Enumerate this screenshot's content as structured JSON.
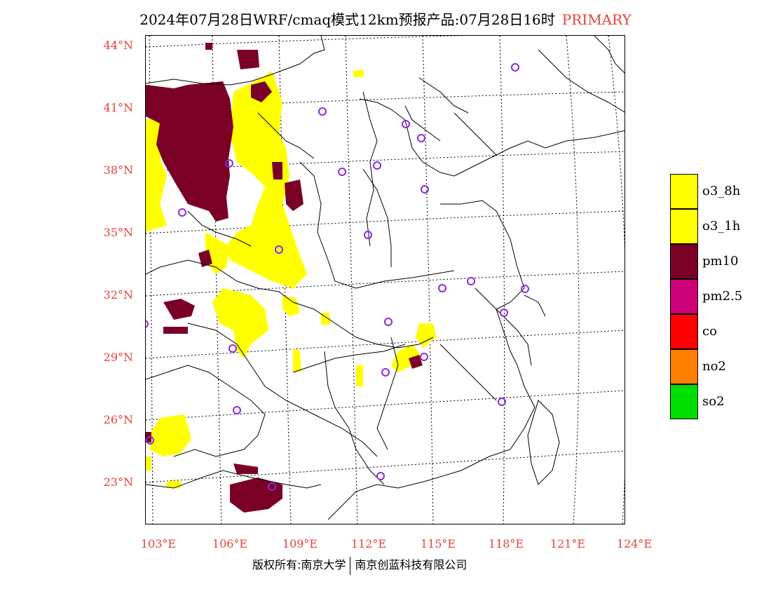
{
  "header": {
    "title": "2024年07月28日WRF/cmaq模式12km预报产品:07月28日16时",
    "tag": "PRIMARY"
  },
  "axes": {
    "lat_labels": [
      "44°N",
      "41°N",
      "38°N",
      "35°N",
      "32°N",
      "29°N",
      "26°N",
      "23°N"
    ],
    "lon_labels": [
      "103°E",
      "106°E",
      "109°E",
      "112°E",
      "115°E",
      "118°E",
      "121°E",
      "124°E"
    ]
  },
  "legend": {
    "items": [
      {
        "label": "o3_8h",
        "color": "#ffff00"
      },
      {
        "label": "o3_1h",
        "color": "#ffff00"
      },
      {
        "label": "pm10",
        "color": "#7a0026"
      },
      {
        "label": "pm2.5",
        "color": "#cc0077"
      },
      {
        "label": "co",
        "color": "#ff0000"
      },
      {
        "label": "no2",
        "color": "#ff7f00"
      },
      {
        "label": "so2",
        "color": "#00dd00"
      }
    ]
  },
  "footer": {
    "left": "版权所有:南京大学",
    "right": "南京创蓝科技有限公司"
  },
  "colors": {
    "axis_label": "#e8423a",
    "o3": "#ffff00",
    "pm10": "#7a0026",
    "station_marker": "#8a2be2"
  }
}
